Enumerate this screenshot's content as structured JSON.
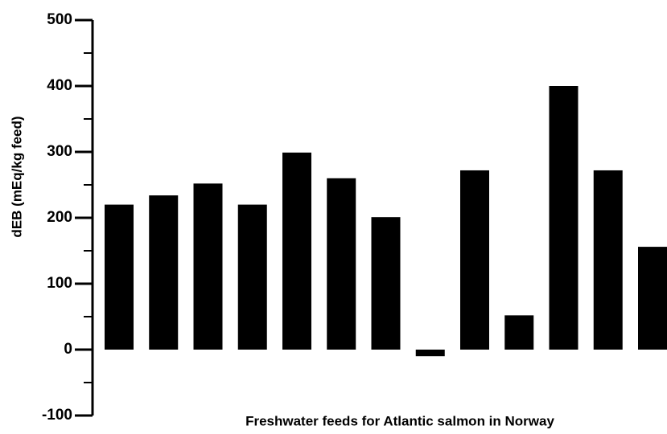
{
  "chart_data": {
    "type": "bar",
    "xlabel": "Freshwater feeds for Atlantic salmon in Norway",
    "ylabel": "dEB (mEq/kg feed)",
    "categories": [
      null,
      null,
      null,
      null,
      null,
      null,
      null,
      null,
      null,
      null,
      null,
      null,
      null
    ],
    "values": [
      220,
      234,
      252,
      220,
      299,
      260,
      201,
      -10,
      272,
      52,
      400,
      272,
      156
    ],
    "color": "#000000",
    "ylim": [
      -100,
      500
    ],
    "yticks": [
      -100,
      0,
      100,
      200,
      300,
      400,
      500
    ],
    "yminorticks": [
      -50,
      50,
      150,
      250,
      350,
      450
    ],
    "grid": false
  }
}
